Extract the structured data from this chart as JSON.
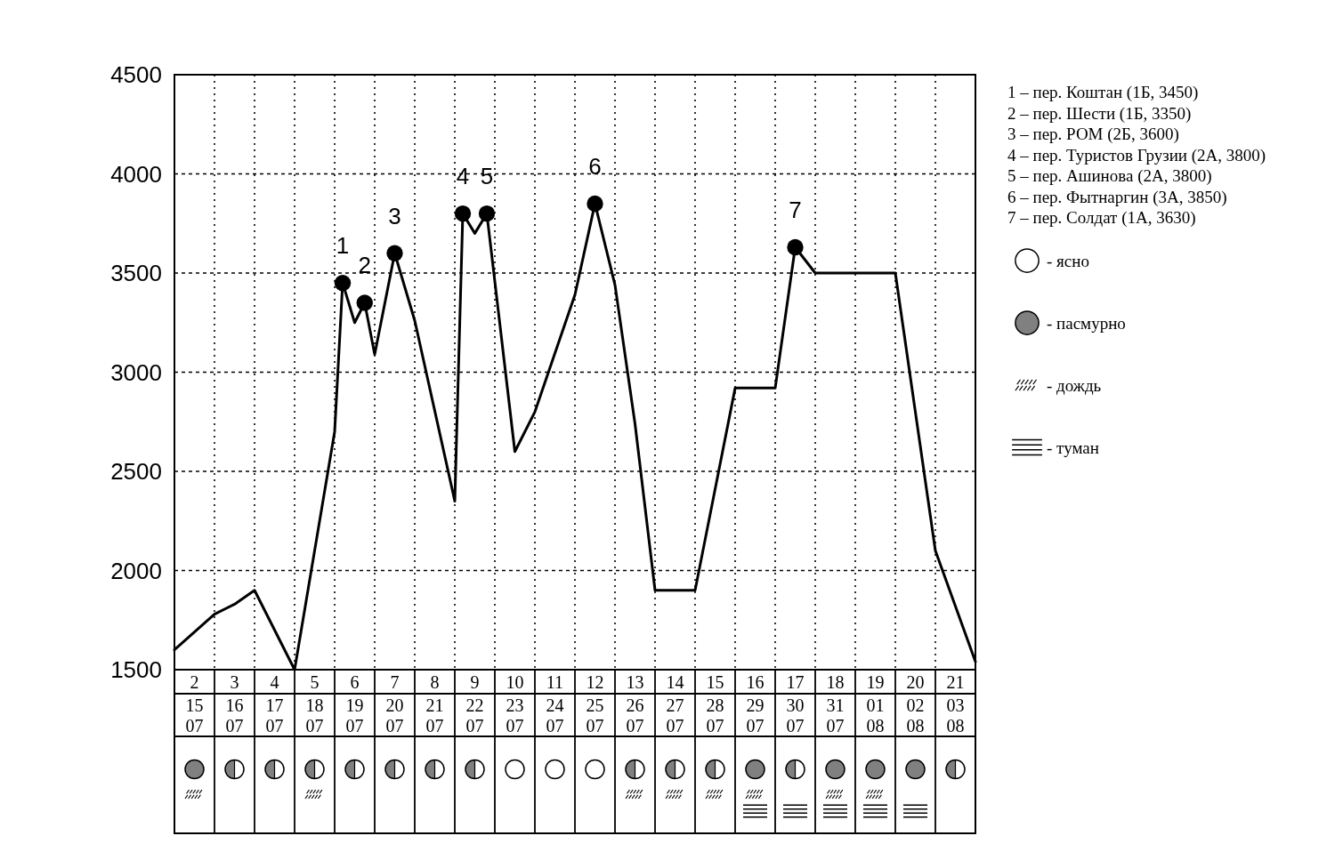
{
  "chart_data": {
    "type": "line",
    "xlim": [
      1.5,
      21.5
    ],
    "xticks": [
      2,
      3,
      4,
      5,
      6,
      7,
      8,
      9,
      10,
      11,
      12,
      13,
      14,
      15,
      16,
      17,
      18,
      19,
      20,
      21
    ],
    "ylim": [
      1500,
      4500
    ],
    "yticks": [
      1500,
      2000,
      2500,
      3000,
      3500,
      4000,
      4500
    ],
    "grid": "y",
    "ref_lines": [
      {
        "axis": "x",
        "value": 2.5,
        "line_style": "dotted",
        "color": "#000000"
      },
      {
        "axis": "x",
        "value": 3.5,
        "line_style": "dotted",
        "color": "#000000"
      },
      {
        "axis": "x",
        "value": 4.5,
        "line_style": "dotted",
        "color": "#000000"
      },
      {
        "axis": "x",
        "value": 5.5,
        "line_style": "dotted",
        "color": "#000000"
      },
      {
        "axis": "x",
        "value": 6.5,
        "line_style": "dotted",
        "color": "#000000"
      },
      {
        "axis": "x",
        "value": 7.5,
        "line_style": "dotted",
        "color": "#000000"
      },
      {
        "axis": "x",
        "value": 8.5,
        "line_style": "dotted",
        "color": "#000000"
      },
      {
        "axis": "x",
        "value": 9.5,
        "line_style": "dotted",
        "color": "#000000"
      },
      {
        "axis": "x",
        "value": 10.5,
        "line_style": "dotted",
        "color": "#000000"
      },
      {
        "axis": "x",
        "value": 11.5,
        "line_style": "dotted",
        "color": "#000000"
      },
      {
        "axis": "x",
        "value": 12.5,
        "line_style": "dotted",
        "color": "#000000"
      },
      {
        "axis": "x",
        "value": 13.5,
        "line_style": "dotted",
        "color": "#000000"
      },
      {
        "axis": "x",
        "value": 14.5,
        "line_style": "dotted",
        "color": "#000000"
      },
      {
        "axis": "x",
        "value": 15.5,
        "line_style": "dotted",
        "color": "#000000"
      },
      {
        "axis": "x",
        "value": 16.5,
        "line_style": "dotted",
        "color": "#000000"
      },
      {
        "axis": "x",
        "value": 17.5,
        "line_style": "dotted",
        "color": "#000000"
      },
      {
        "axis": "x",
        "value": 18.5,
        "line_style": "dotted",
        "color": "#000000"
      },
      {
        "axis": "x",
        "value": 19.5,
        "line_style": "dotted",
        "color": "#000000"
      },
      {
        "axis": "x",
        "value": 20.5,
        "line_style": "dotted",
        "color": "#000000"
      }
    ],
    "series": [
      {
        "color": "#000000",
        "x": [
          1.5,
          2.5,
          3,
          3.5,
          4.5,
          5.5,
          5.7,
          6,
          6.25,
          6.5,
          7,
          7.5,
          8.5,
          8.7,
          9,
          9.3,
          10,
          10.5,
          11.5,
          12,
          12.5,
          13,
          13.5,
          14.5,
          15.5,
          16.5,
          17,
          17.5,
          19.5,
          20.5,
          21.5
        ],
        "values": [
          1600,
          1780,
          1830,
          1900,
          1500,
          2700,
          3450,
          3250,
          3350,
          3090,
          3600,
          3260,
          2350,
          3800,
          3700,
          3800,
          2600,
          2800,
          3390,
          3850,
          3440,
          2740,
          1900,
          1900,
          2920,
          2920,
          3630,
          3500,
          3500,
          2100,
          1540
        ]
      },
      {
        "type": "scatter",
        "color": "#000000",
        "marker": "circle",
        "x": [
          5.7,
          6.25,
          7,
          8.7,
          9.3,
          12,
          17
        ],
        "values": [
          3450,
          3350,
          3600,
          3800,
          3800,
          3850,
          3630
        ]
      }
    ],
    "annotations": [
      "1 – пер. Коштан (1Б, 3450)",
      "2 – пер. Шести (1Б, 3350)",
      "3 – пер. РОМ (2Б, 3600)",
      "4 – пер. Туристов Грузии (2А, 3800)",
      "5 – пер. Ашинова (2А, 3800)",
      "6 – пер. Фытнаргин (3А, 3850)",
      "7 – пер. Солдат (1А, 3630)",
      "- ясно",
      "- пасмурно",
      "- дождь",
      "- туман",
      "15 07",
      "16 07",
      "17 07",
      "18 07",
      "19 07",
      "20 07",
      "21 07",
      "22 07",
      "23 07",
      "24 07",
      "25 07",
      "26 07",
      "27 07",
      "28 07",
      "29 07",
      "30 07",
      "31 07",
      "01 08",
      "02 08",
      "03 08",
      {
        "text": "1",
        "x": 5.7,
        "y": 3450
      },
      {
        "text": "2",
        "x": 6.25,
        "y": 3350
      },
      {
        "text": "3",
        "x": 7,
        "y": 3600
      },
      {
        "text": "4",
        "x": 8.7,
        "y": 3800
      },
      {
        "text": "5",
        "x": 9.3,
        "y": 3800
      },
      {
        "text": "6",
        "x": 12,
        "y": 3850
      },
      {
        "text": "7",
        "x": 17,
        "y": 3630
      }
    ]
  }
}
